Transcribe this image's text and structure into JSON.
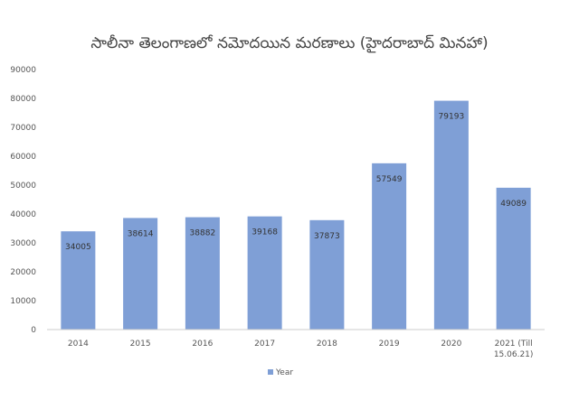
{
  "chart_data": {
    "type": "bar",
    "title": "సాలీనా తెలంగాణలో నమోదయిన మరణాలు (హైదరాబాద్ మినహా)",
    "categories": [
      "2014",
      "2015",
      "2016",
      "2017",
      "2018",
      "2019",
      "2020",
      "2021 (Till 15.06.21)"
    ],
    "category_lines": [
      [
        "2014"
      ],
      [
        "2015"
      ],
      [
        "2016"
      ],
      [
        "2017"
      ],
      [
        "2018"
      ],
      [
        "2019"
      ],
      [
        "2020"
      ],
      [
        "2021 (Till",
        "15.06.21)"
      ]
    ],
    "series": [
      {
        "name": "Year",
        "values": [
          34005,
          38614,
          38882,
          39168,
          37873,
          57549,
          79193,
          49089
        ]
      }
    ],
    "ylim": [
      0,
      90000
    ],
    "yticks": [
      0,
      10000,
      20000,
      30000,
      40000,
      50000,
      60000,
      70000,
      80000,
      90000
    ],
    "grid": false,
    "legend": "bottom",
    "bar_color": "#7f9fd6"
  }
}
